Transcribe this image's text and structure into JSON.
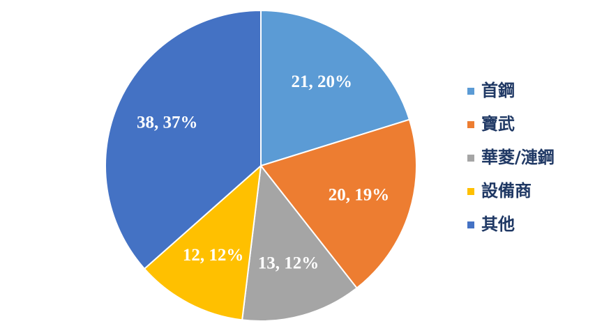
{
  "chart_data": {
    "type": "pie",
    "categories": [
      "首鋼",
      "寶武",
      "華菱/漣鋼",
      "設備商",
      "其他"
    ],
    "values": [
      21,
      20,
      13,
      12,
      38
    ],
    "value_labels": [
      "21, 20%",
      "20, 19%",
      "13, 12%",
      "12, 12%",
      "38, 37%"
    ],
    "colors": [
      "#5b9bd5",
      "#ed7d31",
      "#a5a5a5",
      "#ffc000",
      "#4472c4"
    ],
    "legend": "right"
  }
}
